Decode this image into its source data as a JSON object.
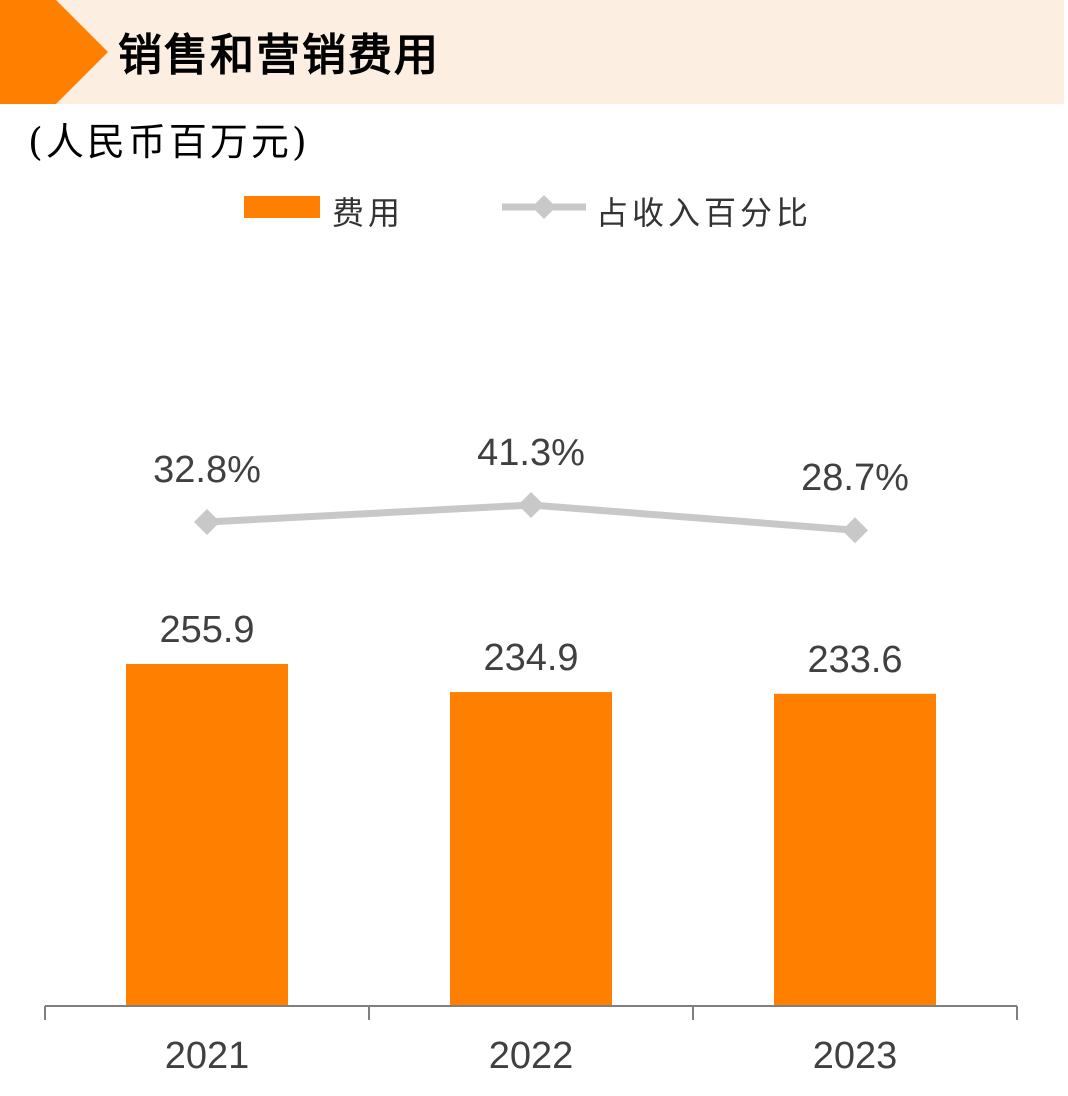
{
  "header": {
    "title": "销售和营销费用"
  },
  "unit_label": "(人民币百万元)",
  "legend": {
    "bar_label": "费用",
    "line_label": "占收入百分比"
  },
  "colors": {
    "bar": "#FF8000",
    "line": "#C8C8C8",
    "header_band": "#FDEEE2",
    "arrow": "#FF8000"
  },
  "chart_data": {
    "type": "bar",
    "categories": [
      "2021",
      "2022",
      "2023"
    ],
    "series": [
      {
        "name": "费用",
        "type": "bar",
        "values": [
          255.9,
          234.9,
          233.6
        ],
        "labels": [
          "255.9",
          "234.9",
          "233.6"
        ]
      },
      {
        "name": "占收入百分比",
        "type": "line",
        "values": [
          32.8,
          41.3,
          28.7
        ],
        "labels": [
          "32.8%",
          "41.3%",
          "28.7%"
        ]
      }
    ],
    "ylim": [
      0,
      255.9
    ],
    "title": "销售和营销费用",
    "ylabel": "(人民币百万元)",
    "grid": false,
    "legend_position": "top"
  }
}
